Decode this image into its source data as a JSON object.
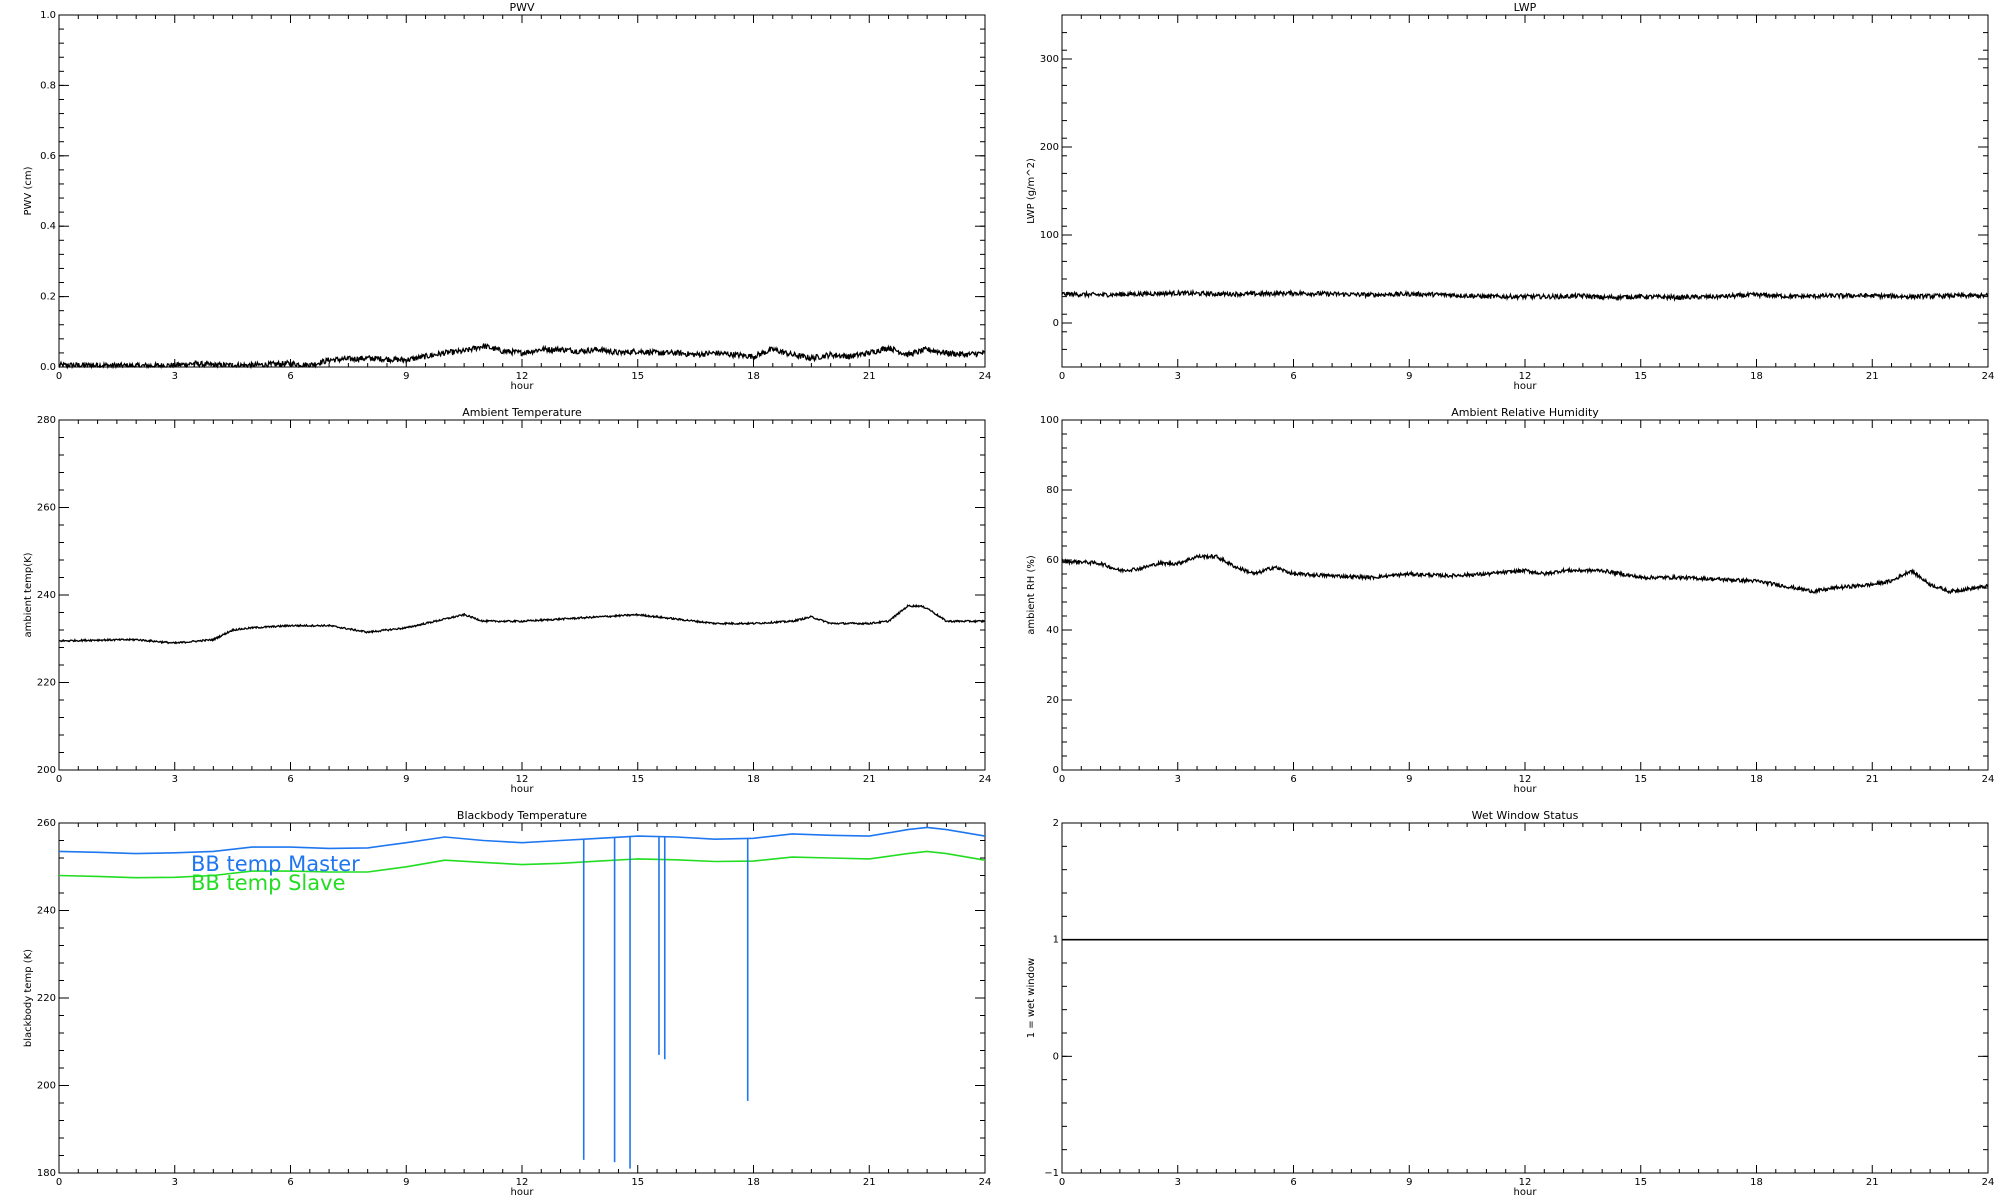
{
  "charts": [
    {
      "id": "pwv",
      "type": "line",
      "title": "PWV",
      "ylabel": "PWV (cm)",
      "xlabel": "hour",
      "xlim": [
        0,
        24
      ],
      "xticks": [
        "0",
        "3",
        "6",
        "9",
        "12",
        "15",
        "18",
        "21",
        "24"
      ],
      "ylim": [
        0,
        1.0
      ],
      "yticks": [
        "0.0",
        "0.2",
        "0.4",
        "0.6",
        "0.8",
        "1.0"
      ],
      "series": [
        {
          "color": "#000000",
          "noise": 0.008,
          "x": [
            0,
            1,
            2,
            3,
            3.5,
            4,
            5,
            6,
            6.5,
            7,
            8,
            9,
            9.5,
            10,
            10.5,
            11,
            11.5,
            12,
            12.5,
            13,
            13.5,
            14,
            14.5,
            15,
            15.5,
            16,
            16.5,
            17,
            17.5,
            18,
            18.5,
            19,
            19.5,
            20,
            20.5,
            21,
            21.5,
            22,
            22.5,
            23,
            23.5,
            24
          ],
          "y": [
            0.005,
            0.005,
            0.003,
            0.005,
            0.01,
            0.005,
            0.005,
            0.01,
            0.005,
            0.02,
            0.025,
            0.02,
            0.03,
            0.04,
            0.045,
            0.06,
            0.045,
            0.04,
            0.05,
            0.05,
            0.045,
            0.05,
            0.04,
            0.045,
            0.04,
            0.04,
            0.035,
            0.04,
            0.035,
            0.03,
            0.05,
            0.035,
            0.025,
            0.035,
            0.03,
            0.04,
            0.055,
            0.035,
            0.05,
            0.04,
            0.035,
            0.04
          ]
        }
      ]
    },
    {
      "id": "lwp",
      "type": "line",
      "title": "LWP",
      "ylabel": "LWP (g/m^2)",
      "xlabel": "hour",
      "xlim": [
        0,
        24
      ],
      "xticks": [
        "0",
        "3",
        "6",
        "9",
        "12",
        "15",
        "18",
        "21",
        "24"
      ],
      "ylim": [
        -50,
        350
      ],
      "yticks": [
        "0",
        "100",
        "200",
        "300"
      ],
      "series": [
        {
          "color": "#000000",
          "noise": 2.5,
          "x": [
            0,
            1,
            2,
            3,
            4,
            5,
            6,
            7,
            8,
            9,
            10,
            11,
            12,
            13,
            13.5,
            14,
            15,
            16,
            17,
            18,
            19,
            20,
            21,
            22,
            23,
            24
          ],
          "y": [
            33,
            32,
            33,
            34,
            33,
            33,
            34,
            33,
            32,
            33,
            32,
            30,
            30,
            30,
            31,
            29,
            30,
            29,
            30,
            32,
            30,
            31,
            31,
            30,
            31,
            31
          ]
        }
      ]
    },
    {
      "id": "ambient-temp",
      "type": "line",
      "title": "Ambient Temperature",
      "ylabel": "ambient temp(K)",
      "xlabel": "hour",
      "xlim": [
        0,
        24
      ],
      "xticks": [
        "0",
        "3",
        "6",
        "9",
        "12",
        "15",
        "18",
        "21",
        "24"
      ],
      "ylim": [
        200,
        280
      ],
      "yticks": [
        "200",
        "220",
        "240",
        "260",
        "280"
      ],
      "series": [
        {
          "color": "#000000",
          "noise": 0.2,
          "x": [
            0,
            1,
            2,
            3,
            4,
            4.5,
            5,
            6,
            7,
            8,
            9,
            10,
            10.5,
            11,
            12,
            13,
            14,
            15,
            16,
            17,
            18,
            19,
            19.5,
            20,
            21,
            21.5,
            22,
            22.3,
            22.5,
            23,
            24
          ],
          "y": [
            229.5,
            229.7,
            229.8,
            229,
            229.8,
            232,
            232.5,
            233,
            233,
            231.5,
            232.5,
            234.5,
            235.5,
            234,
            234,
            234.5,
            235,
            235.5,
            234.5,
            233.5,
            233.5,
            234,
            235,
            233.5,
            233.5,
            234,
            237.5,
            237.5,
            237,
            234,
            234
          ]
        }
      ]
    },
    {
      "id": "ambient-rh",
      "type": "line",
      "title": "Ambient Relative Humidity",
      "ylabel": "ambient RH (%)",
      "xlabel": "hour",
      "xlim": [
        0,
        24
      ],
      "xticks": [
        "0",
        "3",
        "6",
        "9",
        "12",
        "15",
        "18",
        "21",
        "24"
      ],
      "ylim": [
        0,
        100
      ],
      "yticks": [
        "0",
        "20",
        "40",
        "60",
        "80",
        "100"
      ],
      "series": [
        {
          "color": "#000000",
          "noise": 0.5,
          "x": [
            0,
            0.5,
            1,
            1.5,
            2,
            2.5,
            3,
            3.5,
            4,
            4.5,
            5,
            5.5,
            6,
            7,
            8,
            9,
            10,
            11,
            12,
            12.5,
            13,
            14,
            15,
            16,
            17,
            18,
            19,
            19.5,
            20,
            21,
            21.5,
            22,
            22.5,
            23,
            24
          ],
          "y": [
            59.5,
            59.5,
            59,
            57,
            57.5,
            59,
            59,
            61,
            61,
            58,
            56,
            58,
            56,
            55.5,
            55,
            56,
            55.5,
            56,
            57,
            56,
            57,
            57,
            55,
            55,
            54.5,
            54,
            52,
            51,
            52,
            53,
            54,
            57,
            53,
            51,
            52.5
          ]
        }
      ]
    },
    {
      "id": "blackbody-temp",
      "type": "line",
      "title": "Blackbody Temperature",
      "ylabel": "blackbody temp (K)",
      "xlabel": "hour",
      "xlim": [
        0,
        24
      ],
      "xticks": [
        "0",
        "3",
        "6",
        "9",
        "12",
        "15",
        "18",
        "21",
        "24"
      ],
      "ylim": [
        180,
        260
      ],
      "yticks": [
        "180",
        "200",
        "220",
        "240",
        "260"
      ],
      "legend": [
        {
          "label": "BB temp Master",
          "color": "#1f77f0"
        },
        {
          "label": "BB temp Slave",
          "color": "#22dd22"
        }
      ],
      "series": [
        {
          "color": "#1f77f0",
          "noise": 0,
          "x": [
            0,
            1,
            2,
            3,
            4,
            5,
            6,
            7,
            8,
            9,
            10,
            11,
            12,
            13,
            14,
            15,
            16,
            17,
            18,
            19,
            20,
            21,
            22,
            22.5,
            23,
            24
          ],
          "y": [
            253.5,
            253.3,
            253,
            253.2,
            253.5,
            254.5,
            254.5,
            254.2,
            254.3,
            255.5,
            256.8,
            256,
            255.5,
            256,
            256.5,
            257,
            256.8,
            256.3,
            256.5,
            257.5,
            257.2,
            257,
            258.5,
            259,
            258.5,
            257
          ]
        },
        {
          "color": "#22dd22",
          "noise": 0,
          "x": [
            0,
            1,
            2,
            3,
            4,
            5,
            6,
            7,
            8,
            9,
            10,
            11,
            12,
            13,
            14,
            15,
            16,
            17,
            18,
            19,
            20,
            21,
            22,
            22.5,
            23,
            24
          ],
          "y": [
            248,
            247.8,
            247.5,
            247.6,
            248,
            249,
            249,
            248.8,
            248.8,
            250,
            251.5,
            251,
            250.5,
            250.8,
            251.3,
            251.8,
            251.6,
            251.2,
            251.3,
            252.2,
            252,
            251.8,
            253,
            253.5,
            253,
            251.5
          ]
        }
      ],
      "spikes": [
        {
          "x": 13.6,
          "y": 183
        },
        {
          "x": 14.4,
          "y": 182.5
        },
        {
          "x": 14.8,
          "y": 181
        },
        {
          "x": 15.55,
          "y": 207
        },
        {
          "x": 15.7,
          "y": 206
        },
        {
          "x": 17.85,
          "y": 196.5
        }
      ]
    },
    {
      "id": "wet-window",
      "type": "line",
      "title": "Wet Window Status",
      "ylabel": "1 = wet window",
      "xlabel": "hour",
      "xlim": [
        0,
        24
      ],
      "xticks": [
        "0",
        "3",
        "6",
        "9",
        "12",
        "15",
        "18",
        "21",
        "24"
      ],
      "ylim": [
        -1,
        2
      ],
      "yticks": [
        "−1",
        "0",
        "1",
        "2"
      ],
      "series": [
        {
          "color": "#000000",
          "noise": 0,
          "x": [
            0,
            24
          ],
          "y": [
            1,
            1
          ]
        }
      ]
    }
  ]
}
